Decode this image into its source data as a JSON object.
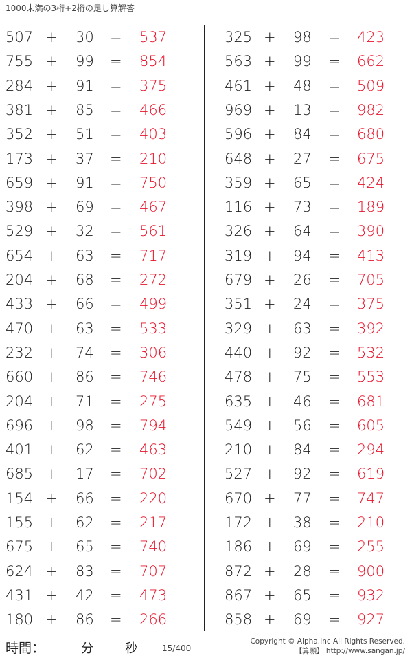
{
  "title": "1000未満の3桁+2桁の足し算解答",
  "colors": {
    "answer": "#e8132a",
    "text": "#222222"
  },
  "plus": "+",
  "equals": "=",
  "left": [
    [
      507,
      30,
      537
    ],
    [
      755,
      99,
      854
    ],
    [
      284,
      91,
      375
    ],
    [
      381,
      85,
      466
    ],
    [
      352,
      51,
      403
    ],
    [
      173,
      37,
      210
    ],
    [
      659,
      91,
      750
    ],
    [
      398,
      69,
      467
    ],
    [
      529,
      32,
      561
    ],
    [
      654,
      63,
      717
    ],
    [
      204,
      68,
      272
    ],
    [
      433,
      66,
      499
    ],
    [
      470,
      63,
      533
    ],
    [
      232,
      74,
      306
    ],
    [
      660,
      86,
      746
    ],
    [
      204,
      71,
      275
    ],
    [
      696,
      98,
      794
    ],
    [
      401,
      62,
      463
    ],
    [
      685,
      17,
      702
    ],
    [
      154,
      66,
      220
    ],
    [
      155,
      62,
      217
    ],
    [
      675,
      65,
      740
    ],
    [
      624,
      83,
      707
    ],
    [
      431,
      42,
      473
    ],
    [
      180,
      86,
      266
    ]
  ],
  "right": [
    [
      325,
      98,
      423
    ],
    [
      563,
      99,
      662
    ],
    [
      461,
      48,
      509
    ],
    [
      969,
      13,
      982
    ],
    [
      596,
      84,
      680
    ],
    [
      648,
      27,
      675
    ],
    [
      359,
      65,
      424
    ],
    [
      116,
      73,
      189
    ],
    [
      326,
      64,
      390
    ],
    [
      319,
      94,
      413
    ],
    [
      679,
      26,
      705
    ],
    [
      351,
      24,
      375
    ],
    [
      329,
      63,
      392
    ],
    [
      440,
      92,
      532
    ],
    [
      478,
      75,
      553
    ],
    [
      635,
      46,
      681
    ],
    [
      549,
      56,
      605
    ],
    [
      210,
      84,
      294
    ],
    [
      527,
      92,
      619
    ],
    [
      670,
      77,
      747
    ],
    [
      172,
      38,
      210
    ],
    [
      186,
      69,
      255
    ],
    [
      872,
      28,
      900
    ],
    [
      867,
      65,
      932
    ],
    [
      858,
      69,
      927
    ]
  ],
  "footer": {
    "time_label": "時間：",
    "minutes": "分",
    "seconds": "秒",
    "page": "15/400",
    "copyright": "Copyright © Alpha.Inc All Rights Reserved.",
    "site": "【算願】 http://www.sangan.jp/"
  }
}
